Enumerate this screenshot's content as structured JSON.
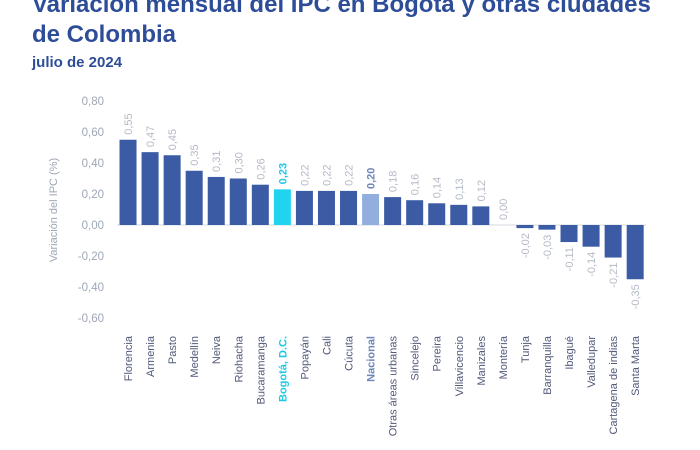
{
  "chart_data": {
    "type": "bar",
    "title": "Variación mensual del IPC en Bogotá y otras ciudades de Colombia",
    "subtitle": "julio de 2024",
    "xlabel": "",
    "ylabel": "Variación del IPC (%)",
    "ylim": [
      -0.6,
      0.8
    ],
    "yticks": [
      0.8,
      0.6,
      0.4,
      0.2,
      0.0,
      -0.2,
      -0.4,
      -0.6
    ],
    "ytick_labels": [
      "0,80",
      "0,60",
      "0,40",
      "0,20",
      "0,00",
      "-0,20",
      "-0,40",
      "-0,60"
    ],
    "categories": [
      "Florencia",
      "Armenia",
      "Pasto",
      "Medellín",
      "Neiva",
      "Riohacha",
      "Bucaramanga",
      "Bogotá, D.C.",
      "Popayán",
      "Cali",
      "Cúcuta",
      "Nacional",
      "Otras áreas urbanas",
      "Sincelejo",
      "Pereira",
      "Villavicencio",
      "Manizales",
      "Montería",
      "Tunja",
      "Barranquilla",
      "Ibagué",
      "Valledupar",
      "Cartagena de indias",
      "Santa Marta"
    ],
    "values": [
      0.55,
      0.47,
      0.45,
      0.35,
      0.31,
      0.3,
      0.26,
      0.23,
      0.22,
      0.22,
      0.22,
      0.2,
      0.18,
      0.16,
      0.14,
      0.13,
      0.12,
      0.0,
      -0.02,
      -0.03,
      -0.11,
      -0.14,
      -0.21,
      -0.35
    ],
    "value_labels": [
      "0,55",
      "0,47",
      "0,45",
      "0,35",
      "0,31",
      "0,30",
      "0,26",
      "0,23",
      "0,22",
      "0,22",
      "0,22",
      "0,20",
      "0,18",
      "0,16",
      "0,14",
      "0,13",
      "0,12",
      "0,00",
      "-0,02",
      "-0,03",
      "-0,11",
      "-0,14",
      "-0,21",
      "-0,35"
    ],
    "highlights": {
      "Bogotá, D.C.": "bogota",
      "Nacional": "nacional"
    }
  },
  "colors": {
    "title": "#2e4d99",
    "subtitle": "#2e4d99",
    "bar": "#3b5ba5",
    "bogota": "#22d3f0",
    "nacional": "#92aede",
    "axis_text": "#9ea7b8",
    "category_text": "#52597a",
    "value_label": "#b4bac6",
    "bogota_label": "#20c8e6",
    "nacional_label": "#6d86b9",
    "zero_line": "#c6cbd5"
  }
}
